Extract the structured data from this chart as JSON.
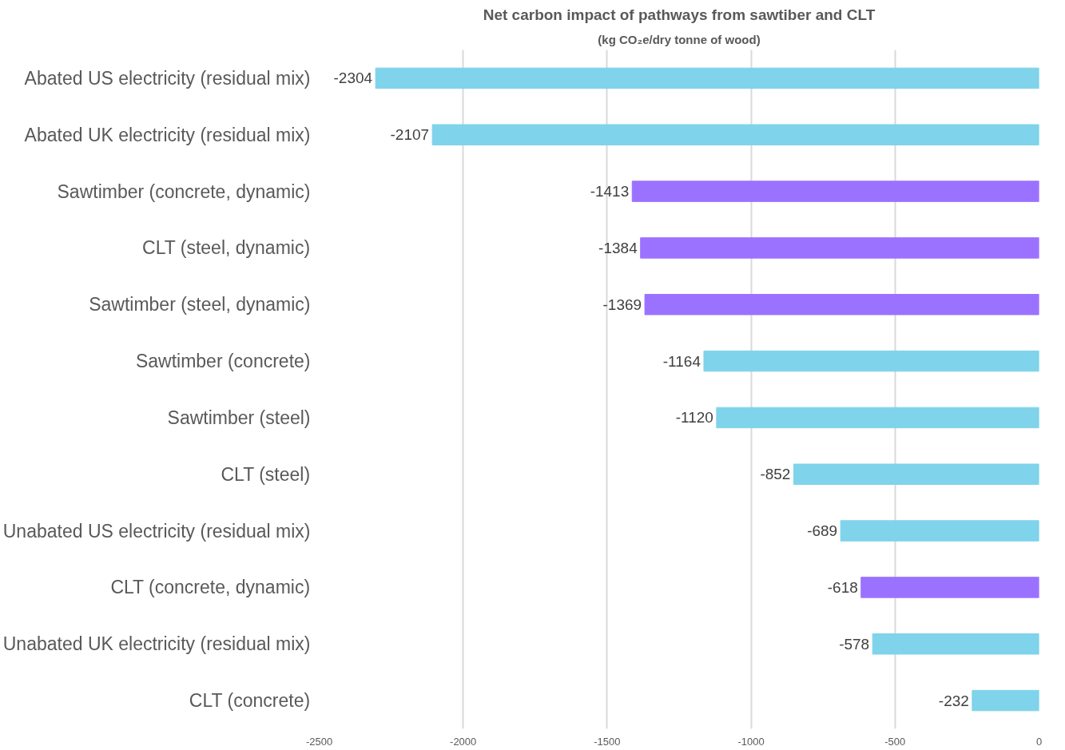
{
  "chart_data": {
    "type": "bar",
    "orientation": "horizontal",
    "title": "Net carbon impact of pathways from sawtiber and CLT",
    "subtitle": "(kg CO₂e/dry tonne of wood)",
    "categories": [
      "Abated US electricity (residual mix)",
      "Abated UK electricity (residual mix)",
      "Sawtimber (concrete, dynamic)",
      "CLT (steel, dynamic)",
      "Sawtimber (steel, dynamic)",
      "Sawtimber (concrete)",
      "Sawtimber (steel)",
      "CLT (steel)",
      "Unabated US electricity (residual mix)",
      "CLT (concrete, dynamic)",
      "Unabated UK electricity (residual mix)",
      "CLT (concrete)"
    ],
    "values": [
      -2304,
      -2107,
      -1413,
      -1384,
      -1369,
      -1164,
      -1120,
      -852,
      -689,
      -618,
      -578,
      -232
    ],
    "colors": [
      "#7fd3ea",
      "#7fd3ea",
      "#9b72ff",
      "#9b72ff",
      "#9b72ff",
      "#7fd3ea",
      "#7fd3ea",
      "#7fd3ea",
      "#7fd3ea",
      "#9b72ff",
      "#7fd3ea",
      "#7fd3ea"
    ],
    "xlim": [
      -2500,
      0
    ],
    "xticks": [
      -2500,
      -2000,
      -1500,
      -1000,
      -500,
      0
    ],
    "grid": "x",
    "data_labels": true
  }
}
